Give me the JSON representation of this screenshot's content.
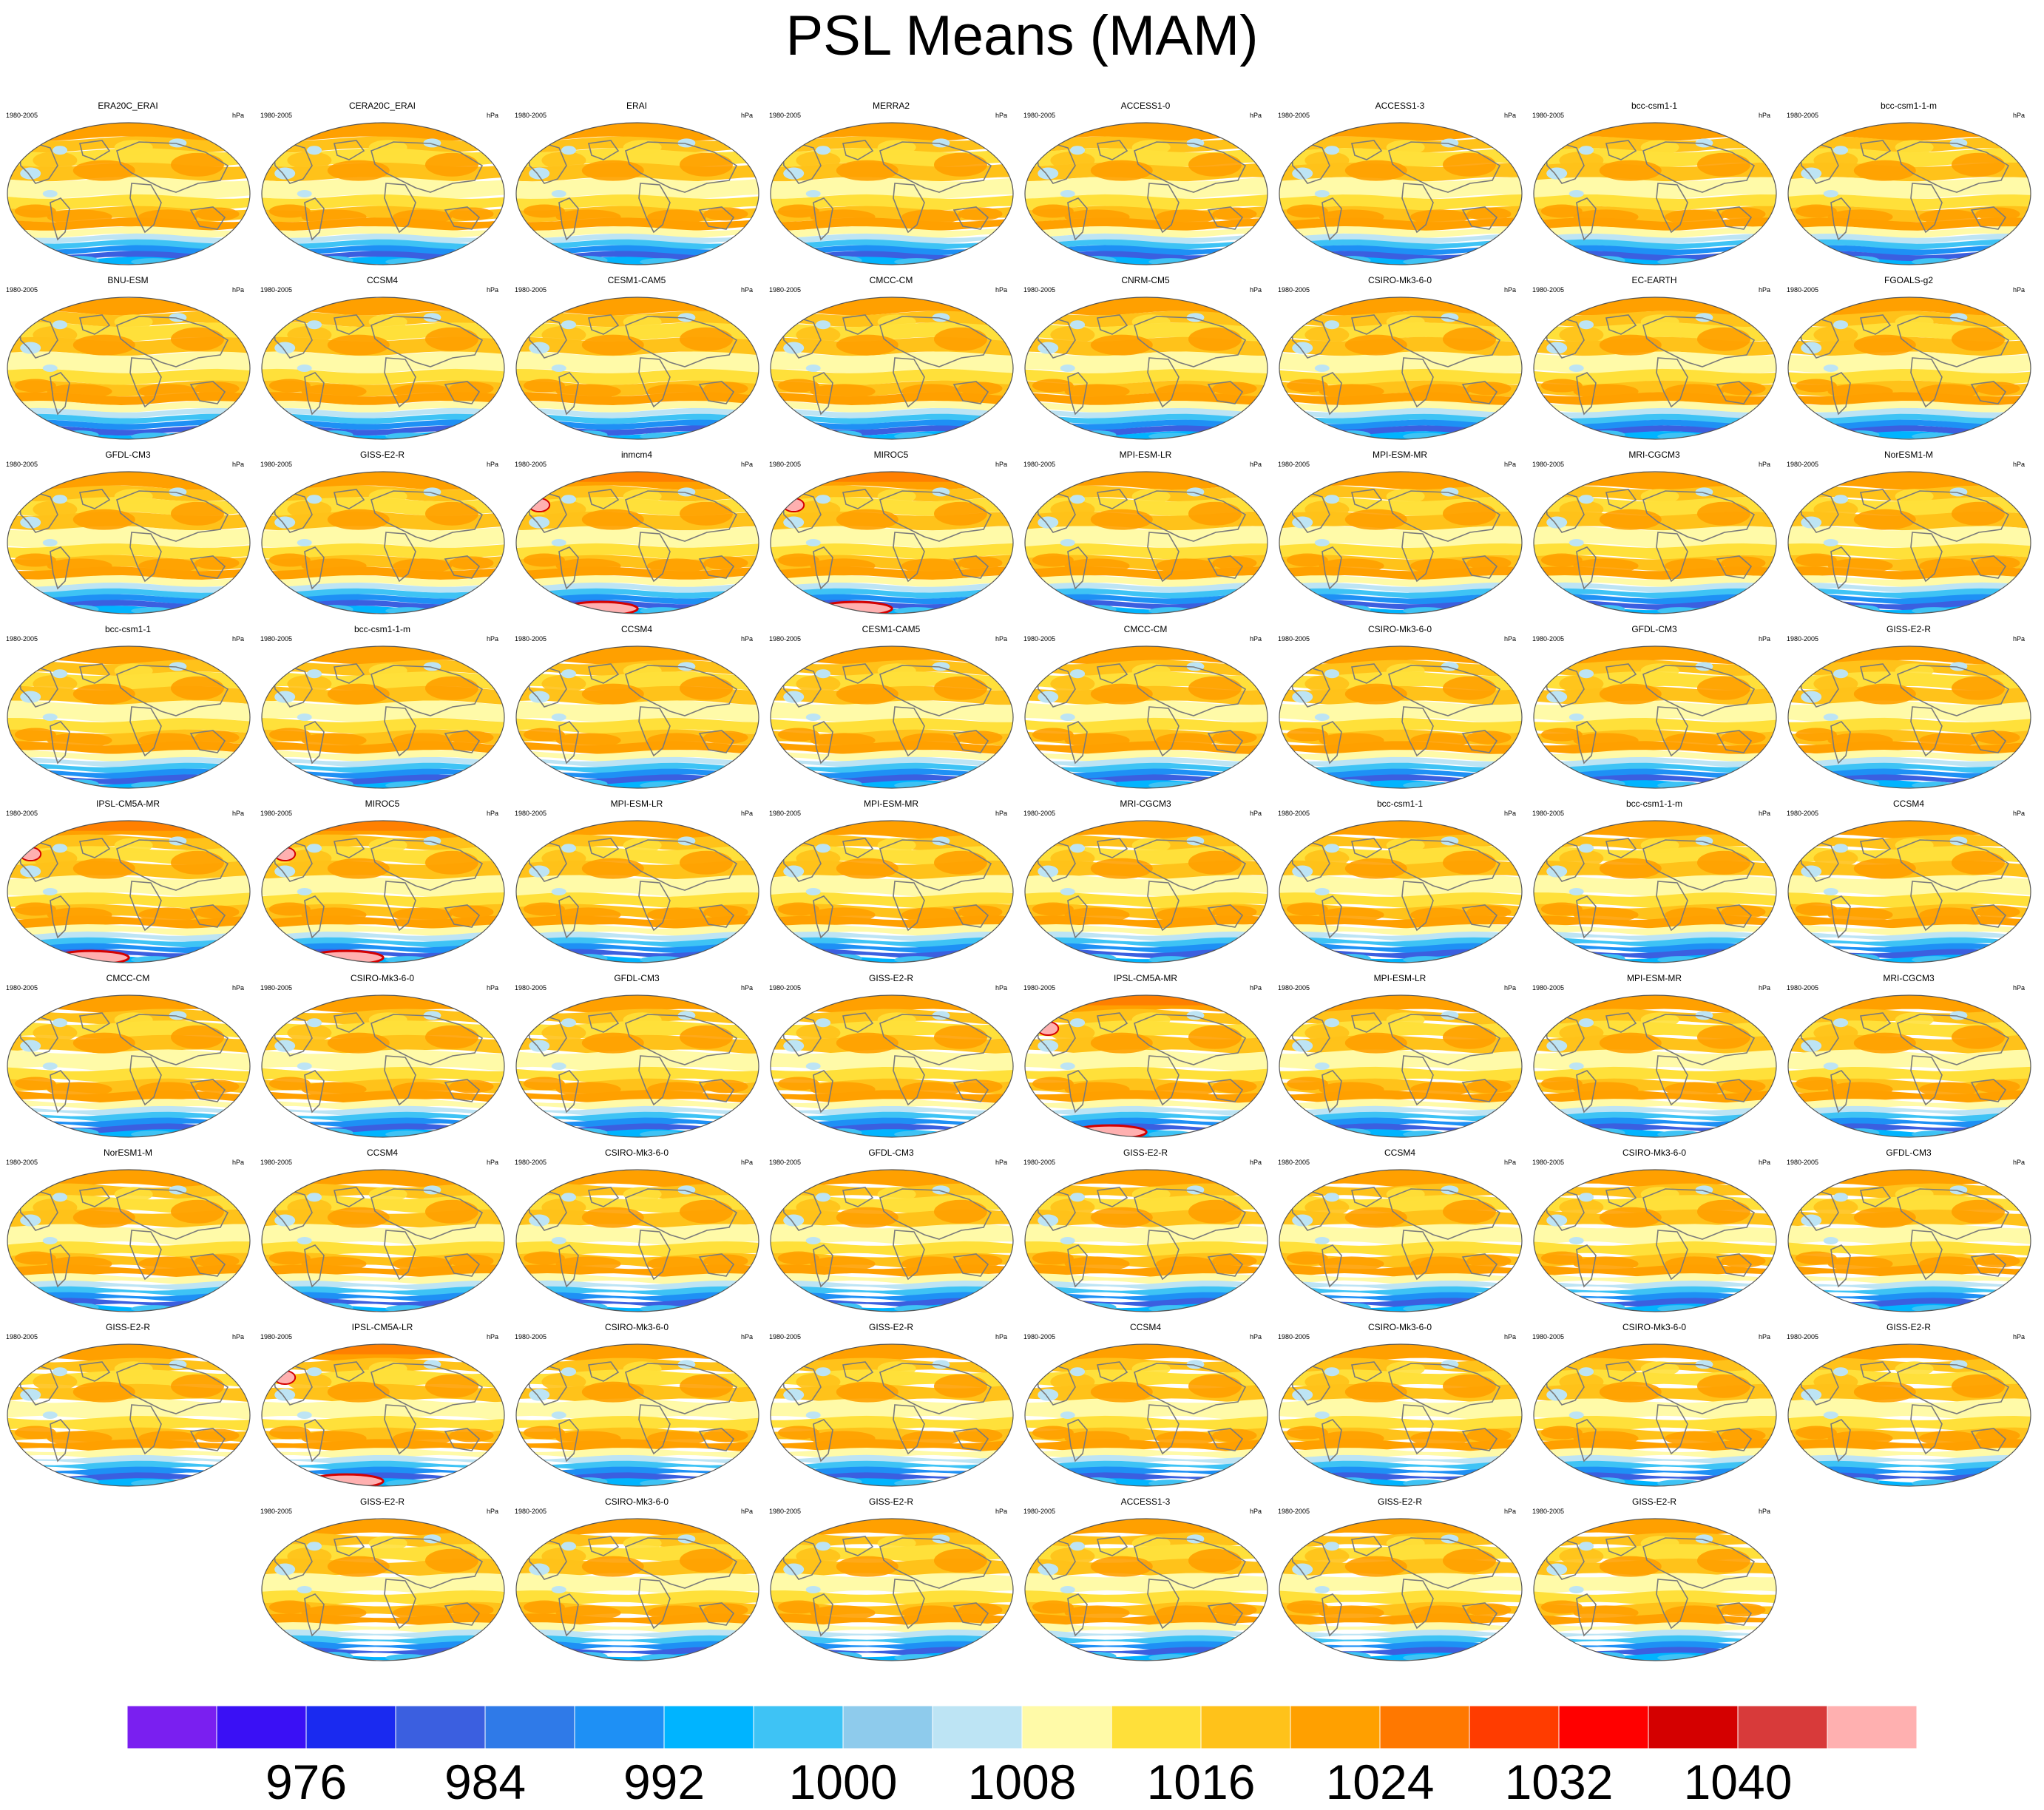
{
  "title": "PSL Means (MAM)",
  "chart_data": {
    "type": "heatmap",
    "description_free": true,
    "colorbar": {
      "colors": [
        "#7a1ff0",
        "#3a10f5",
        "#1a2af0",
        "#3b5fe0",
        "#2f7ae8",
        "#1e90f5",
        "#00b4ff",
        "#3ec3f5",
        "#8ecbec",
        "#bde4f4",
        "#fffaa8",
        "#ffe03a",
        "#ffc21a",
        "#ffa000",
        "#ff7800",
        "#ff3c00",
        "#ff0000",
        "#d40000",
        "#d83a3a",
        "#ffb0b0"
      ],
      "tick_labels": [
        "976",
        "984",
        "992",
        "1000",
        "1008",
        "1016",
        "1024",
        "1032",
        "1040"
      ],
      "tick_after_bin": [
        1,
        3,
        5,
        7,
        9,
        11,
        13,
        15,
        17
      ]
    },
    "panels": [
      {
        "title": "ERA20C_ERAI",
        "period": "1980-2005",
        "units": "hPa"
      },
      {
        "title": "CERA20C_ERAI",
        "period": "1980-2005",
        "units": "hPa"
      },
      {
        "title": "ERAI",
        "period": "1980-2005",
        "units": "hPa"
      },
      {
        "title": "MERRA2",
        "period": "1980-2005",
        "units": "hPa"
      },
      {
        "title": "ACCESS1-0",
        "period": "1980-2005",
        "units": "hPa"
      },
      {
        "title": "ACCESS1-3",
        "period": "1980-2005",
        "units": "hPa"
      },
      {
        "title": "bcc-csm1-1",
        "period": "1980-2005",
        "units": "hPa"
      },
      {
        "title": "bcc-csm1-1-m",
        "period": "1980-2005",
        "units": "hPa"
      },
      {
        "title": "BNU-ESM",
        "period": "1980-2005",
        "units": "hPa"
      },
      {
        "title": "CCSM4",
        "period": "1980-2005",
        "units": "hPa"
      },
      {
        "title": "CESM1-CAM5",
        "period": "1980-2005",
        "units": "hPa"
      },
      {
        "title": "CMCC-CM",
        "period": "1980-2005",
        "units": "hPa"
      },
      {
        "title": "CNRM-CM5",
        "period": "1980-2005",
        "units": "hPa"
      },
      {
        "title": "CSIRO-Mk3-6-0",
        "period": "1980-2005",
        "units": "hPa"
      },
      {
        "title": "EC-EARTH",
        "period": "1980-2005",
        "units": "hPa"
      },
      {
        "title": "FGOALS-g2",
        "period": "1980-2005",
        "units": "hPa"
      },
      {
        "title": "GFDL-CM3",
        "period": "1980-2005",
        "units": "hPa"
      },
      {
        "title": "GISS-E2-R",
        "period": "1980-2005",
        "units": "hPa"
      },
      {
        "title": "inmcm4",
        "period": "1980-2005",
        "units": "hPa"
      },
      {
        "title": "MIROC5",
        "period": "1980-2005",
        "units": "hPa"
      },
      {
        "title": "MPI-ESM-LR",
        "period": "1980-2005",
        "units": "hPa"
      },
      {
        "title": "MPI-ESM-MR",
        "period": "1980-2005",
        "units": "hPa"
      },
      {
        "title": "MRI-CGCM3",
        "period": "1980-2005",
        "units": "hPa"
      },
      {
        "title": "NorESM1-M",
        "period": "1980-2005",
        "units": "hPa"
      },
      {
        "title": "bcc-csm1-1",
        "period": "1980-2005",
        "units": "hPa"
      },
      {
        "title": "bcc-csm1-1-m",
        "period": "1980-2005",
        "units": "hPa"
      },
      {
        "title": "CCSM4",
        "period": "1980-2005",
        "units": "hPa"
      },
      {
        "title": "CESM1-CAM5",
        "period": "1980-2005",
        "units": "hPa"
      },
      {
        "title": "CMCC-CM",
        "period": "1980-2005",
        "units": "hPa"
      },
      {
        "title": "CSIRO-Mk3-6-0",
        "period": "1980-2005",
        "units": "hPa"
      },
      {
        "title": "GFDL-CM3",
        "period": "1980-2005",
        "units": "hPa"
      },
      {
        "title": "GISS-E2-R",
        "period": "1980-2005",
        "units": "hPa"
      },
      {
        "title": "IPSL-CM5A-MR",
        "period": "1980-2005",
        "units": "hPa"
      },
      {
        "title": "MIROC5",
        "period": "1980-2005",
        "units": "hPa"
      },
      {
        "title": "MPI-ESM-LR",
        "period": "1980-2005",
        "units": "hPa"
      },
      {
        "title": "MPI-ESM-MR",
        "period": "1980-2005",
        "units": "hPa"
      },
      {
        "title": "MRI-CGCM3",
        "period": "1980-2005",
        "units": "hPa"
      },
      {
        "title": "bcc-csm1-1",
        "period": "1980-2005",
        "units": "hPa"
      },
      {
        "title": "bcc-csm1-1-m",
        "period": "1980-2005",
        "units": "hPa"
      },
      {
        "title": "CCSM4",
        "period": "1980-2005",
        "units": "hPa"
      },
      {
        "title": "CMCC-CM",
        "period": "1980-2005",
        "units": "hPa"
      },
      {
        "title": "CSIRO-Mk3-6-0",
        "period": "1980-2005",
        "units": "hPa"
      },
      {
        "title": "GFDL-CM3",
        "period": "1980-2005",
        "units": "hPa"
      },
      {
        "title": "GISS-E2-R",
        "period": "1980-2005",
        "units": "hPa"
      },
      {
        "title": "IPSL-CM5A-MR",
        "period": "1980-2005",
        "units": "hPa"
      },
      {
        "title": "MPI-ESM-LR",
        "period": "1980-2005",
        "units": "hPa"
      },
      {
        "title": "MPI-ESM-MR",
        "period": "1980-2005",
        "units": "hPa"
      },
      {
        "title": "MRI-CGCM3",
        "period": "1980-2005",
        "units": "hPa"
      },
      {
        "title": "NorESM1-M",
        "period": "1980-2005",
        "units": "hPa"
      },
      {
        "title": "CCSM4",
        "period": "1980-2005",
        "units": "hPa"
      },
      {
        "title": "CSIRO-Mk3-6-0",
        "period": "1980-2005",
        "units": "hPa"
      },
      {
        "title": "GFDL-CM3",
        "period": "1980-2005",
        "units": "hPa"
      },
      {
        "title": "GISS-E2-R",
        "period": "1980-2005",
        "units": "hPa"
      },
      {
        "title": "CCSM4",
        "period": "1980-2005",
        "units": "hPa"
      },
      {
        "title": "CSIRO-Mk3-6-0",
        "period": "1980-2005",
        "units": "hPa"
      },
      {
        "title": "GFDL-CM3",
        "period": "1980-2005",
        "units": "hPa"
      },
      {
        "title": "GISS-E2-R",
        "period": "1980-2005",
        "units": "hPa"
      },
      {
        "title": "IPSL-CM5A-LR",
        "period": "1980-2005",
        "units": "hPa"
      },
      {
        "title": "CSIRO-Mk3-6-0",
        "period": "1980-2005",
        "units": "hPa"
      },
      {
        "title": "GISS-E2-R",
        "period": "1980-2005",
        "units": "hPa"
      },
      {
        "title": "CCSM4",
        "period": "1980-2005",
        "units": "hPa"
      },
      {
        "title": "CSIRO-Mk3-6-0",
        "period": "1980-2005",
        "units": "hPa"
      },
      {
        "title": "CSIRO-Mk3-6-0",
        "period": "1980-2005",
        "units": "hPa"
      },
      {
        "title": "GISS-E2-R",
        "period": "1980-2005",
        "units": "hPa"
      },
      {
        "title": "GISS-E2-R",
        "period": "1980-2005",
        "units": "hPa"
      },
      {
        "title": "CSIRO-Mk3-6-0",
        "period": "1980-2005",
        "units": "hPa"
      },
      {
        "title": "GISS-E2-R",
        "period": "1980-2005",
        "units": "hPa"
      },
      {
        "title": "ACCESS1-3",
        "period": "1980-2005",
        "units": "hPa"
      },
      {
        "title": "GISS-E2-R",
        "period": "1980-2005",
        "units": "hPa"
      },
      {
        "title": "GISS-E2-R",
        "period": "1980-2005",
        "units": "hPa"
      }
    ],
    "special_panels": [
      "IPSL-CM5A-MR",
      "IPSL-CM5A-LR",
      "inmcm4",
      "MIROC5"
    ]
  }
}
